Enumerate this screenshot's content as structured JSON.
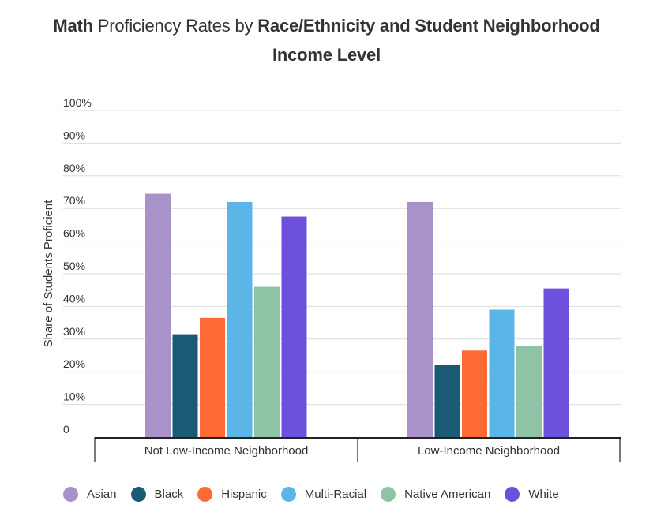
{
  "title_parts": [
    {
      "text": "Math",
      "bold": true
    },
    {
      "text": " Proficiency Rates by ",
      "bold": false
    },
    {
      "text": "Race/Ethnicity and Student Neighborhood Income Level",
      "bold": true
    }
  ],
  "chart_data": {
    "type": "bar",
    "ylabel": "Share of Students Proficient",
    "ylim": [
      0,
      100
    ],
    "yticks": [
      "0",
      "10%",
      "20%",
      "30%",
      "40%",
      "50%",
      "60%",
      "70%",
      "80%",
      "90%",
      "100%"
    ],
    "grid": true,
    "legend_position": "bottom",
    "categories": [
      "Not Low-Income Neighborhood",
      "Low-Income Neighborhood"
    ],
    "series": [
      {
        "name": "Asian",
        "color": "#a992c8",
        "values": [
          74.5,
          72
        ]
      },
      {
        "name": "Black",
        "color": "#1b5a75",
        "values": [
          31.5,
          22
        ]
      },
      {
        "name": "Hispanic",
        "color": "#fd6a36",
        "values": [
          36.5,
          26.5
        ]
      },
      {
        "name": "Multi-Racial",
        "color": "#5bb5e6",
        "values": [
          72,
          39
        ]
      },
      {
        "name": "Native American",
        "color": "#8fc3a6",
        "values": [
          46,
          28
        ]
      },
      {
        "name": "White",
        "color": "#6d51dc",
        "values": [
          67.5,
          45.5
        ]
      }
    ]
  }
}
